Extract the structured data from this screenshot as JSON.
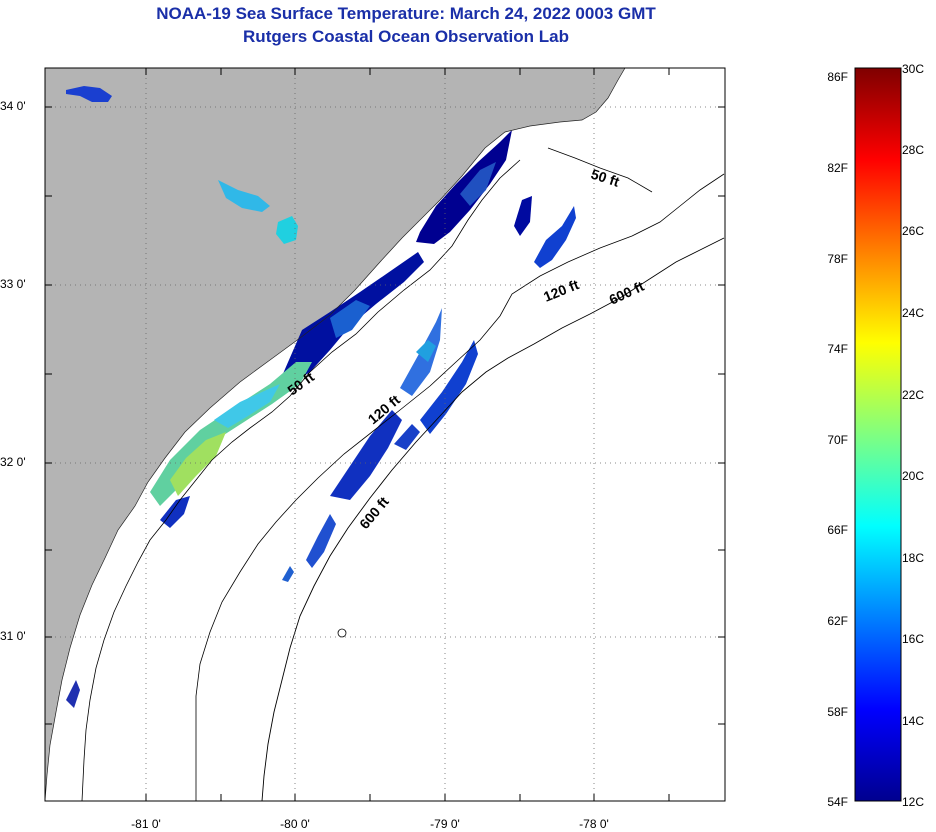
{
  "title": {
    "line1": "NOAA-19 Sea Surface Temperature:  March 24, 2022 0003 GMT",
    "line2": "Rutgers Coastal Ocean Observation Lab"
  },
  "map": {
    "lat_labels": [
      "34 0'",
      "33 0'",
      "32 0'",
      "31 0'"
    ],
    "lon_labels": [
      "-81 0'",
      "-80 0'",
      "-79 0'",
      "-78 0'"
    ],
    "contour_labels": [
      "50 ft",
      "120 ft",
      "600 ft",
      "50 ft",
      "120 ft",
      "600 ft"
    ],
    "colors": {
      "land": "#b4b4b4",
      "ocean": "#ffffff",
      "grid": "#555555"
    }
  },
  "colorbar": {
    "f_labels": [
      "86F",
      "82F",
      "78F",
      "74F",
      "70F",
      "66F",
      "62F",
      "58F",
      "54F"
    ],
    "c_labels": [
      "30C",
      "28C",
      "26C",
      "24C",
      "22C",
      "20C",
      "18C",
      "16C",
      "14C",
      "12C"
    ],
    "stops": [
      "#7f0000",
      "#ff0000",
      "#ff8000",
      "#ffff00",
      "#80ff80",
      "#00ffff",
      "#0080ff",
      "#0000ff",
      "#00008f"
    ]
  }
}
